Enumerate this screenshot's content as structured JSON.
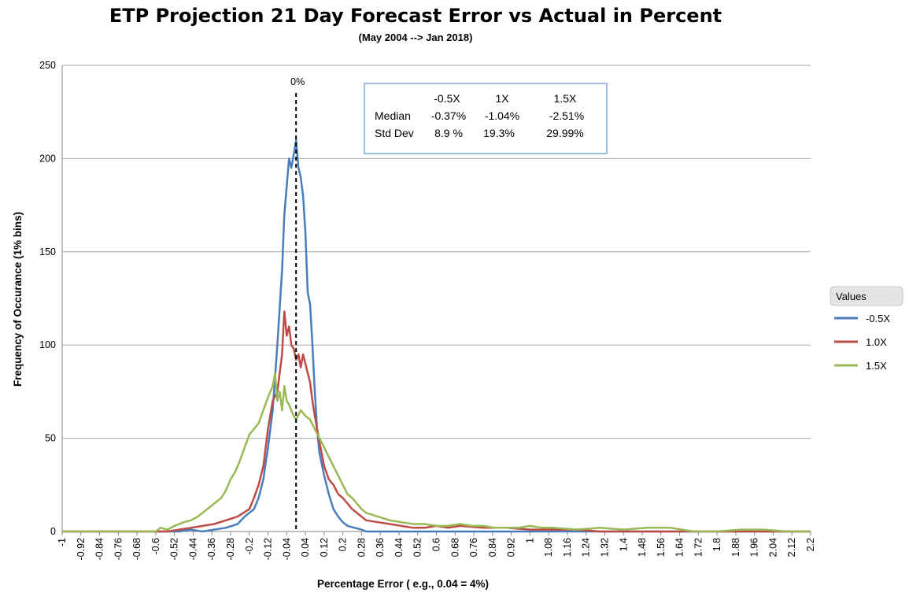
{
  "chart_data": {
    "type": "line",
    "title": "ETP Projection 21 Day Forecast Error vs Actual in Percent",
    "subtitle": "(May 2004 --> Jan 2018)",
    "xlabel": "Percentage Error ( e.g., 0.04 = 4%)",
    "ylabel": "Frequency of Occurance (1% bins)",
    "xlim": [
      -1,
      2.2
    ],
    "ylim": [
      0,
      250
    ],
    "x_ticks": [
      -1,
      -0.92,
      -0.84,
      -0.76,
      -0.68,
      -0.6,
      -0.52,
      -0.44,
      -0.36,
      -0.28,
      -0.2,
      -0.12,
      -0.04,
      0.04,
      0.12,
      0.2,
      0.28,
      0.36,
      0.44,
      0.52,
      0.6,
      0.68,
      0.76,
      0.84,
      0.92,
      1,
      1.08,
      1.16,
      1.24,
      1.32,
      1.4,
      1.48,
      1.56,
      1.64,
      1.72,
      1.8,
      1.88,
      1.96,
      2.04,
      2.12,
      2.2
    ],
    "y_ticks": [
      0,
      50,
      100,
      150,
      200,
      250
    ],
    "grid": "horizontal",
    "legend_title": "Values",
    "legend_position": "right",
    "reference_line": {
      "x": 0,
      "label": "0%"
    },
    "series": [
      {
        "name": "-0.5X",
        "color": "#4a7ebb",
        "points": [
          [
            -1,
            0
          ],
          [
            -0.6,
            0
          ],
          [
            -0.5,
            0
          ],
          [
            -0.45,
            1
          ],
          [
            -0.4,
            0
          ],
          [
            -0.35,
            1
          ],
          [
            -0.3,
            2
          ],
          [
            -0.25,
            4
          ],
          [
            -0.22,
            8
          ],
          [
            -0.2,
            10
          ],
          [
            -0.18,
            12
          ],
          [
            -0.16,
            18
          ],
          [
            -0.14,
            28
          ],
          [
            -0.12,
            45
          ],
          [
            -0.1,
            65
          ],
          [
            -0.08,
            100
          ],
          [
            -0.06,
            140
          ],
          [
            -0.05,
            170
          ],
          [
            -0.04,
            185
          ],
          [
            -0.03,
            200
          ],
          [
            -0.02,
            195
          ],
          [
            -0.01,
            202
          ],
          [
            0,
            210
          ],
          [
            0.01,
            195
          ],
          [
            0.02,
            190
          ],
          [
            0.03,
            180
          ],
          [
            0.04,
            160
          ],
          [
            0.05,
            128
          ],
          [
            0.06,
            122
          ],
          [
            0.07,
            100
          ],
          [
            0.08,
            75
          ],
          [
            0.09,
            55
          ],
          [
            0.1,
            42
          ],
          [
            0.12,
            30
          ],
          [
            0.14,
            20
          ],
          [
            0.16,
            12
          ],
          [
            0.18,
            8
          ],
          [
            0.2,
            5
          ],
          [
            0.22,
            3
          ],
          [
            0.25,
            2
          ],
          [
            0.28,
            1
          ],
          [
            0.3,
            0
          ],
          [
            0.35,
            0
          ],
          [
            0.5,
            0
          ],
          [
            0.6,
            0
          ],
          [
            2.2,
            0
          ]
        ]
      },
      {
        "name": "1.0X",
        "color": "#be4b48",
        "points": [
          [
            -1,
            0
          ],
          [
            -0.55,
            0
          ],
          [
            -0.5,
            1
          ],
          [
            -0.45,
            2
          ],
          [
            -0.4,
            3
          ],
          [
            -0.35,
            4
          ],
          [
            -0.3,
            6
          ],
          [
            -0.25,
            8
          ],
          [
            -0.2,
            12
          ],
          [
            -0.18,
            18
          ],
          [
            -0.16,
            25
          ],
          [
            -0.14,
            35
          ],
          [
            -0.12,
            55
          ],
          [
            -0.1,
            70
          ],
          [
            -0.08,
            75
          ],
          [
            -0.07,
            85
          ],
          [
            -0.06,
            95
          ],
          [
            -0.05,
            118
          ],
          [
            -0.04,
            105
          ],
          [
            -0.03,
            110
          ],
          [
            -0.02,
            100
          ],
          [
            -0.01,
            98
          ],
          [
            0,
            92
          ],
          [
            0.01,
            95
          ],
          [
            0.02,
            88
          ],
          [
            0.03,
            95
          ],
          [
            0.04,
            90
          ],
          [
            0.05,
            85
          ],
          [
            0.06,
            80
          ],
          [
            0.07,
            70
          ],
          [
            0.08,
            62
          ],
          [
            0.1,
            48
          ],
          [
            0.12,
            35
          ],
          [
            0.14,
            28
          ],
          [
            0.16,
            25
          ],
          [
            0.18,
            20
          ],
          [
            0.2,
            18
          ],
          [
            0.22,
            15
          ],
          [
            0.24,
            12
          ],
          [
            0.26,
            10
          ],
          [
            0.28,
            8
          ],
          [
            0.3,
            6
          ],
          [
            0.35,
            5
          ],
          [
            0.4,
            4
          ],
          [
            0.45,
            3
          ],
          [
            0.5,
            2
          ],
          [
            0.55,
            2
          ],
          [
            0.6,
            3
          ],
          [
            0.65,
            2
          ],
          [
            0.7,
            3
          ],
          [
            0.8,
            2
          ],
          [
            0.9,
            2
          ],
          [
            1,
            1
          ],
          [
            1.1,
            1
          ],
          [
            1.2,
            1
          ],
          [
            1.3,
            0
          ],
          [
            1.5,
            0
          ],
          [
            2.2,
            0
          ]
        ]
      },
      {
        "name": "1.5X",
        "color": "#98b954",
        "points": [
          [
            -1,
            0
          ],
          [
            -0.6,
            0
          ],
          [
            -0.58,
            2
          ],
          [
            -0.55,
            1
          ],
          [
            -0.52,
            3
          ],
          [
            -0.48,
            5
          ],
          [
            -0.45,
            6
          ],
          [
            -0.42,
            8
          ],
          [
            -0.4,
            10
          ],
          [
            -0.38,
            12
          ],
          [
            -0.35,
            15
          ],
          [
            -0.32,
            18
          ],
          [
            -0.3,
            22
          ],
          [
            -0.28,
            28
          ],
          [
            -0.26,
            32
          ],
          [
            -0.24,
            38
          ],
          [
            -0.22,
            45
          ],
          [
            -0.2,
            52
          ],
          [
            -0.18,
            55
          ],
          [
            -0.16,
            58
          ],
          [
            -0.14,
            65
          ],
          [
            -0.12,
            72
          ],
          [
            -0.1,
            78
          ],
          [
            -0.09,
            85
          ],
          [
            -0.08,
            70
          ],
          [
            -0.07,
            75
          ],
          [
            -0.06,
            65
          ],
          [
            -0.05,
            78
          ],
          [
            -0.04,
            70
          ],
          [
            -0.03,
            68
          ],
          [
            -0.02,
            65
          ],
          [
            -0.01,
            62
          ],
          [
            0,
            60
          ],
          [
            0.02,
            65
          ],
          [
            0.04,
            62
          ],
          [
            0.06,
            60
          ],
          [
            0.08,
            55
          ],
          [
            0.1,
            50
          ],
          [
            0.12,
            45
          ],
          [
            0.14,
            40
          ],
          [
            0.16,
            35
          ],
          [
            0.18,
            30
          ],
          [
            0.2,
            25
          ],
          [
            0.22,
            20
          ],
          [
            0.24,
            18
          ],
          [
            0.26,
            15
          ],
          [
            0.28,
            12
          ],
          [
            0.3,
            10
          ],
          [
            0.35,
            8
          ],
          [
            0.4,
            6
          ],
          [
            0.45,
            5
          ],
          [
            0.5,
            4
          ],
          [
            0.55,
            4
          ],
          [
            0.6,
            3
          ],
          [
            0.65,
            3
          ],
          [
            0.7,
            4
          ],
          [
            0.75,
            3
          ],
          [
            0.8,
            3
          ],
          [
            0.85,
            2
          ],
          [
            0.9,
            2
          ],
          [
            0.95,
            2
          ],
          [
            1,
            3
          ],
          [
            1.05,
            2
          ],
          [
            1.1,
            2
          ],
          [
            1.2,
            1
          ],
          [
            1.3,
            2
          ],
          [
            1.4,
            1
          ],
          [
            1.5,
            2
          ],
          [
            1.6,
            2
          ],
          [
            1.7,
            0
          ],
          [
            1.8,
            0
          ],
          [
            1.9,
            1
          ],
          [
            2.0,
            1
          ],
          [
            2.1,
            0
          ],
          [
            2.2,
            0
          ]
        ]
      }
    ],
    "stats_table": {
      "columns": [
        "-0.5X",
        "1X",
        "1.5X"
      ],
      "rows": [
        {
          "label": "Median",
          "values": [
            "-0.37%",
            "-1.04%",
            "-2.51%"
          ]
        },
        {
          "label": "Std Dev",
          "values": [
            "8.9 %",
            "19.3%",
            "29.99%"
          ]
        }
      ]
    }
  }
}
